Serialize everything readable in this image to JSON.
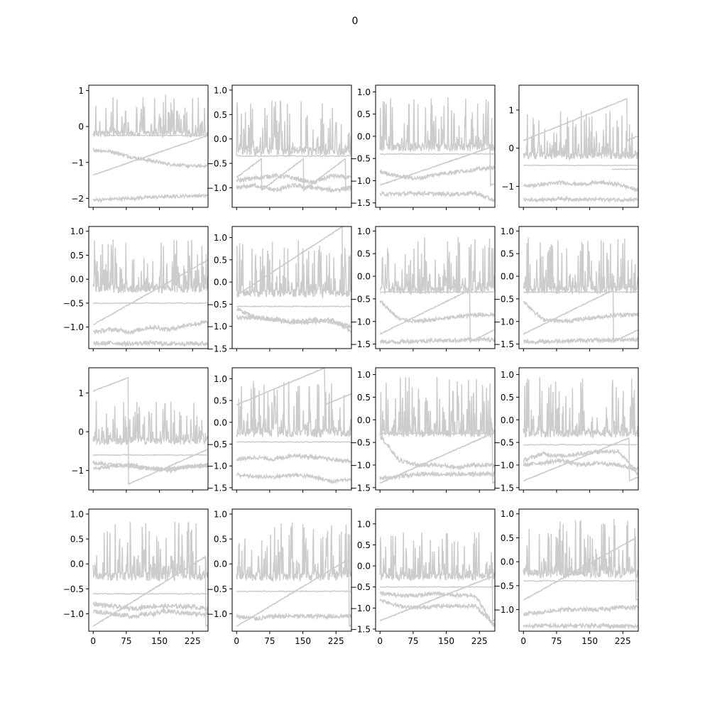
{
  "figure": {
    "title": "0",
    "line_color": "#cccccc",
    "axis_color": "#000000",
    "background": "#ffffff"
  },
  "chart_data": {
    "type": "line",
    "description_source": "4x4 grid of line subplots; all series drawn in light gray; shared x axis 0-250",
    "shared_x_ticks": [
      "0",
      "75",
      "150",
      "225"
    ],
    "x_tick_values": [
      0,
      75,
      150,
      225
    ],
    "xlim": [
      -10,
      260
    ],
    "panels": [
      {
        "ylim": [
          -2.25,
          1.15
        ],
        "y_ticks": [
          1,
          0,
          -1,
          -2
        ],
        "y_tick_labels": [
          "1",
          "0",
          "−1",
          "−2"
        ],
        "spike": {
          "base": -0.2,
          "top": 0.9,
          "count": 40
        },
        "flat": [
          {
            "level": -0.25,
            "x0": 25
          }
        ],
        "wander": [
          {
            "levels": [
              -0.65,
              -0.7,
              -0.85,
              -0.95,
              -1.05,
              -1.1,
              -1.1
            ]
          },
          {
            "levels": [
              -2.05,
              -2.02,
              -2.0,
              -1.97,
              -1.95,
              -1.93,
              -1.93
            ]
          }
        ],
        "ramps": [
          {
            "x_start": 0,
            "period": 260,
            "y0": -1.35,
            "y1": -0.25
          }
        ]
      },
      {
        "ylim": [
          -1.4,
          1.1
        ],
        "y_ticks": [
          1.0,
          0.5,
          0.0,
          -0.5,
          -1.0
        ],
        "y_tick_labels": [
          "1.0",
          "0.5",
          "0.0",
          "−0.5",
          "−1.0"
        ],
        "spike": {
          "base": -0.25,
          "top": 0.8,
          "count": 45
        },
        "flat": [
          {
            "level": -0.35
          }
        ],
        "wander": [
          {
            "levels": [
              -0.85,
              -0.8,
              -0.75,
              -0.8,
              -0.9,
              -0.75,
              -0.8
            ]
          },
          {
            "levels": [
              -1.0,
              -0.95,
              -1.05,
              -0.95,
              -1.0,
              -1.05,
              -1.0
            ]
          }
        ],
        "ramps": [
          {
            "x_start": 0,
            "period": 95,
            "y0": -1.05,
            "y1": -0.4,
            "phase": 0.4
          }
        ]
      },
      {
        "ylim": [
          -1.6,
          1.15
        ],
        "y_ticks": [
          1.0,
          0.5,
          0.0,
          -0.5,
          -1.0,
          -1.5
        ],
        "y_tick_labels": [
          "1.0",
          "0.5",
          "0.0",
          "−0.5",
          "−1.0",
          "−1.5"
        ],
        "spike": {
          "base": -0.25,
          "top": 0.9,
          "count": 45
        },
        "flat": [
          {
            "level": -0.4
          }
        ],
        "wander": [
          {
            "levels": [
              -0.8,
              -0.9,
              -0.95,
              -0.85,
              -0.8,
              -0.75,
              -0.7
            ]
          },
          {
            "levels": [
              -1.3,
              -1.3,
              -1.28,
              -1.3,
              -1.3,
              -1.28,
              -1.45
            ]
          }
        ],
        "ramps": [
          {
            "x_start": 0,
            "period": 250,
            "y0": -1.1,
            "y1": -0.25
          }
        ]
      },
      {
        "ylim": [
          -1.55,
          1.65
        ],
        "y_ticks": [
          1,
          0,
          -1
        ],
        "y_tick_labels": [
          "1",
          "0",
          "−1"
        ],
        "spike": {
          "base": -0.2,
          "top": 1.0,
          "count": 40
        },
        "flat": [
          {
            "level": -0.45
          },
          {
            "level": -0.55,
            "x0": 200
          }
        ],
        "wander": [
          {
            "levels": [
              -1.0,
              -0.95,
              -0.9,
              -0.95,
              -0.9,
              -0.95,
              -1.1
            ]
          },
          {
            "levels": [
              -1.35,
              -1.35,
              -1.32,
              -1.35,
              -1.34,
              -1.35,
              -1.35
            ]
          }
        ],
        "ramps": [
          {
            "x_start": 0,
            "period": 235,
            "y0": 0.2,
            "y1": 1.3
          }
        ]
      },
      {
        "ylim": [
          -1.45,
          1.1
        ],
        "y_ticks": [
          1.0,
          0.5,
          0.0,
          -0.5,
          -1.0
        ],
        "y_tick_labels": [
          "1.0",
          "0.5",
          "0.0",
          "−0.5",
          "−1.0"
        ],
        "spike": {
          "base": -0.2,
          "top": 0.85,
          "count": 50
        },
        "flat": [
          {
            "level": -0.5
          }
        ],
        "wander": [
          {
            "levels": [
              -1.1,
              -1.05,
              -1.1,
              -1.0,
              -1.05,
              -0.95,
              -0.9
            ]
          },
          {
            "levels": [
              -1.35,
              -1.33,
              -1.35,
              -1.33,
              -1.35,
              -1.34,
              -1.35
            ]
          }
        ],
        "ramps": [
          {
            "x_start": 0,
            "period": 260,
            "y0": -0.95,
            "y1": 0.4
          }
        ]
      },
      {
        "ylim": [
          -1.5,
          1.25
        ],
        "y_ticks": [
          1.0,
          0.5,
          0.0,
          -0.5,
          -1.0,
          -1.5
        ],
        "y_tick_labels": [
          "1.0",
          "0.5",
          "0.0",
          "−0.5",
          "−1.0",
          "−1.5"
        ],
        "spike": {
          "base": -0.25,
          "top": 0.95,
          "count": 50
        },
        "flat": [
          {
            "level": -0.55
          }
        ],
        "wander": [
          {
            "levels": [
              -0.8,
              -0.8,
              -0.85,
              -0.9,
              -0.9,
              -0.85,
              -1.1
            ]
          },
          {
            "levels": [
              -0.6,
              -0.8,
              -0.85,
              -0.9,
              -0.85,
              -0.9,
              -1.0
            ]
          }
        ],
        "ramps": [
          {
            "x_start": 0,
            "period": 240,
            "y0": -0.3,
            "y1": 1.25
          }
        ]
      },
      {
        "ylim": [
          -1.6,
          1.1
        ],
        "y_ticks": [
          1.0,
          0.5,
          0.0,
          -0.5,
          -1.0,
          -1.5
        ],
        "y_tick_labels": [
          "1.0",
          "0.5",
          "0.0",
          "−0.5",
          "−1.0",
          "−1.5"
        ],
        "spike": {
          "base": -0.3,
          "top": 0.9,
          "count": 45
        },
        "flat": [
          {
            "level": -0.35
          }
        ],
        "wander": [
          {
            "levels": [
              -0.55,
              -0.95,
              -1.0,
              -0.95,
              -0.9,
              -0.85,
              -0.85
            ]
          },
          {
            "levels": [
              -1.45,
              -1.45,
              -1.43,
              -1.42,
              -1.42,
              -1.4,
              -1.4
            ]
          }
        ],
        "ramps": [
          {
            "x_start": 0,
            "period": 240,
            "y0": -1.45,
            "y1": -0.3,
            "phase": 0.15
          }
        ]
      },
      {
        "ylim": [
          -1.6,
          1.1
        ],
        "y_ticks": [
          1.0,
          0.5,
          0.0,
          -0.5,
          -1.0,
          -1.5
        ],
        "y_tick_labels": [
          "1.0",
          "0.5",
          "0.0",
          "−0.5",
          "−1.0",
          "−1.5"
        ],
        "spike": {
          "base": -0.3,
          "top": 0.9,
          "count": 45
        },
        "flat": [
          {
            "level": -0.35
          }
        ],
        "wander": [
          {
            "levels": [
              -0.55,
              -0.95,
              -1.0,
              -0.95,
              -0.9,
              -0.85,
              -0.85
            ]
          },
          {
            "levels": [
              -1.45,
              -1.45,
              -1.43,
              -1.42,
              -1.42,
              -1.4,
              -1.4
            ]
          }
        ],
        "ramps": [
          {
            "x_start": 0,
            "period": 240,
            "y0": -1.45,
            "y1": -0.3,
            "phase": 0.15
          }
        ]
      },
      {
        "ylim": [
          -1.5,
          1.65
        ],
        "y_ticks": [
          1,
          0,
          -1
        ],
        "y_tick_labels": [
          "1",
          "0",
          "−1"
        ],
        "spike": {
          "base": -0.25,
          "top": 0.8,
          "count": 40
        },
        "flat": [
          {
            "level": -0.6
          }
        ],
        "wander": [
          {
            "levels": [
              -0.95,
              -0.9,
              -0.85,
              -0.95,
              -0.95,
              -0.9,
              -0.9
            ]
          },
          {
            "levels": [
              -0.8,
              -0.85,
              -0.9,
              -0.95,
              -1.0,
              -0.9,
              -0.85
            ]
          }
        ],
        "ramps": [
          {
            "x_start": 0,
            "period": 80,
            "y0": 1.05,
            "y1": 1.4,
            "then_y0": -1.35,
            "then_y1": -0.45
          }
        ]
      },
      {
        "ylim": [
          -1.55,
          1.25
        ],
        "y_ticks": [
          1.0,
          0.5,
          0.0,
          -0.5,
          -1.0,
          -1.5
        ],
        "y_tick_labels": [
          "1.0",
          "0.5",
          "0.0",
          "−0.5",
          "−1.0",
          "−1.5"
        ],
        "spike": {
          "base": -0.25,
          "top": 0.95,
          "count": 45
        },
        "flat": [
          {
            "level": -0.45
          }
        ],
        "wander": [
          {
            "levels": [
              -0.85,
              -0.8,
              -0.85,
              -0.75,
              -0.8,
              -0.85,
              -0.9
            ]
          },
          {
            "levels": [
              -1.2,
              -1.25,
              -1.25,
              -1.2,
              -1.25,
              -1.35,
              -1.3
            ]
          }
        ],
        "ramps": [
          {
            "x_start": 0,
            "period": 200,
            "y0": 0.4,
            "y1": 1.25
          }
        ]
      },
      {
        "ylim": [
          -1.55,
          1.15
        ],
        "y_ticks": [
          1.0,
          0.5,
          0.0,
          -0.5,
          -1.0,
          -1.5
        ],
        "y_tick_labels": [
          "1.0",
          "0.5",
          "0.0",
          "−0.5",
          "−1.0",
          "−1.5"
        ],
        "spike": {
          "base": -0.3,
          "top": 0.95,
          "count": 55
        },
        "flat": [
          {
            "level": -0.3
          }
        ],
        "wander": [
          {
            "levels": [
              -0.35,
              -0.9,
              -1.0,
              -1.0,
              -1.05,
              -1.0,
              -1.0
            ]
          },
          {
            "levels": [
              -1.3,
              -1.25,
              -1.2,
              -1.2,
              -1.2,
              -1.2,
              -1.2
            ]
          }
        ],
        "ramps": [
          {
            "x_start": 0,
            "period": 255,
            "y0": -1.4,
            "y1": -0.3
          }
        ]
      },
      {
        "ylim": [
          -1.55,
          1.15
        ],
        "y_ticks": [
          1.0,
          0.5,
          0.0,
          -0.5,
          -1.0,
          -1.5
        ],
        "y_tick_labels": [
          "1.0",
          "0.5",
          "0.0",
          "−0.5",
          "−1.0",
          "−1.5"
        ],
        "spike": {
          "base": -0.3,
          "top": 0.95,
          "count": 45
        },
        "flat": [
          {
            "level": -0.55
          }
        ],
        "wander": [
          {
            "levels": [
              -0.9,
              -0.75,
              -0.8,
              -0.75,
              -0.7,
              -0.7,
              -1.2
            ]
          },
          {
            "levels": [
              -1.0,
              -0.95,
              -0.9,
              -1.0,
              -0.95,
              -1.0,
              -1.1
            ]
          }
        ],
        "ramps": [
          {
            "x_start": 0,
            "period": 240,
            "y0": -1.35,
            "y1": -0.4
          }
        ]
      },
      {
        "ylim": [
          -1.35,
          1.1
        ],
        "y_ticks": [
          1.0,
          0.5,
          0.0,
          -0.5,
          -1.0
        ],
        "y_tick_labels": [
          "1.0",
          "0.5",
          "0.0",
          "−0.5",
          "−1.0"
        ],
        "spike": {
          "base": -0.25,
          "top": 0.85,
          "count": 45
        },
        "flat": [
          {
            "level": -0.6
          }
        ],
        "wander": [
          {
            "levels": [
              -0.8,
              -0.85,
              -0.9,
              -0.85,
              -0.85,
              -0.85,
              -0.9
            ]
          },
          {
            "levels": [
              -0.95,
              -1.0,
              -1.05,
              -1.0,
              -0.95,
              -1.0,
              -1.0
            ]
          }
        ],
        "ramps": [
          {
            "x_start": 0,
            "period": 255,
            "y0": -1.25,
            "y1": 0.15
          }
        ]
      },
      {
        "ylim": [
          -1.35,
          1.1
        ],
        "y_ticks": [
          1.0,
          0.5,
          0.0,
          -0.5,
          -1.0
        ],
        "y_tick_labels": [
          "1.0",
          "0.5",
          "0.0",
          "−0.5",
          "−1.0"
        ],
        "spike": {
          "base": -0.25,
          "top": 0.85,
          "count": 45
        },
        "flat": [
          {
            "level": -0.55
          }
        ],
        "wander": [
          {
            "levels": [
              -1.05,
              -1.1,
              -1.05,
              -1.05,
              -1.05,
              -1.05,
              -1.05
            ]
          }
        ],
        "ramps": [
          {
            "x_start": 0,
            "period": 255,
            "y0": -1.25,
            "y1": 0.1
          }
        ]
      },
      {
        "ylim": [
          -1.55,
          1.35
        ],
        "y_ticks": [
          1.0,
          0.5,
          0.0,
          -0.5,
          -1.0,
          -1.5
        ],
        "y_tick_labels": [
          "1.0",
          "0.5",
          "0.0",
          "−0.5",
          "−1.0",
          "−1.5"
        ],
        "spike": {
          "base": -0.25,
          "top": 0.85,
          "count": 40
        },
        "flat": [
          {
            "level": -0.5
          }
        ],
        "wander": [
          {
            "levels": [
              -0.65,
              -0.7,
              -0.7,
              -0.65,
              -0.7,
              -0.7,
              -1.45
            ]
          },
          {
            "levels": [
              -0.8,
              -0.95,
              -1.0,
              -0.95,
              -0.95,
              -0.95,
              -1.4
            ]
          }
        ],
        "ramps": [
          {
            "x_start": 0,
            "period": 255,
            "y0": -1.3,
            "y1": -0.25
          }
        ]
      },
      {
        "ylim": [
          -1.45,
          1.1
        ],
        "y_ticks": [
          1.0,
          0.5,
          0.0,
          -0.5,
          -1.0
        ],
        "y_tick_labels": [
          "1.0",
          "0.5",
          "0.0",
          "−0.5",
          "−1.0"
        ],
        "spike": {
          "base": -0.25,
          "top": 0.9,
          "count": 45
        },
        "flat": [
          {
            "level": -0.4
          }
        ],
        "wander": [
          {
            "levels": [
              -1.1,
              -1.05,
              -1.0,
              -1.0,
              -1.0,
              -0.95,
              -0.95
            ]
          },
          {
            "levels": [
              -1.35,
              -1.33,
              -1.35,
              -1.33,
              -1.33,
              -1.35,
              -1.35
            ]
          }
        ],
        "ramps": [
          {
            "x_start": 0,
            "period": 255,
            "y0": -0.8,
            "y1": 0.5
          }
        ]
      }
    ]
  }
}
